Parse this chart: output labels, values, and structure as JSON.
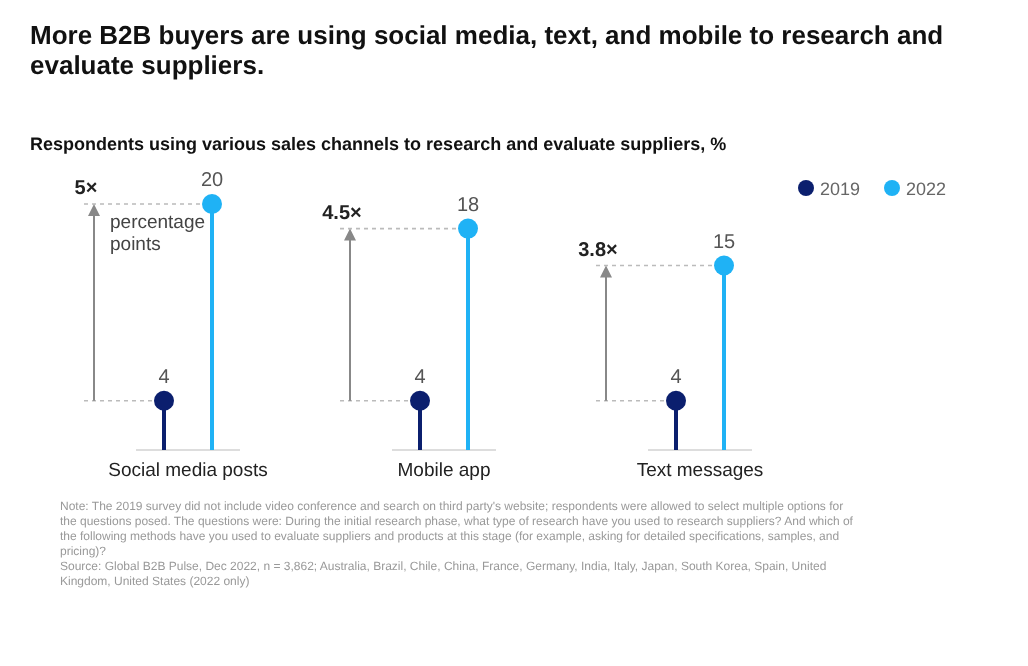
{
  "chart_data": {
    "type": "lollipop",
    "title": "More B2B buyers are using social media, text, and mobile to research and evaluate suppliers.",
    "subtitle": "Respondents using various sales channels to research and evaluate suppliers, %",
    "categories": [
      "Social media posts",
      "Mobile app",
      "Text messages"
    ],
    "series": [
      {
        "name": "2019",
        "color": "#0b1f6e",
        "values": [
          4,
          4,
          4
        ]
      },
      {
        "name": "2022",
        "color": "#1fb2f5",
        "values": [
          20,
          18,
          15
        ]
      }
    ],
    "data_labels": true,
    "legend": "top right",
    "annotations": [
      "5×",
      "4.5×",
      "3.8×",
      "percentage points",
      "Note: The 2019 survey did not include video conference and search on third party's website; respondents were allowed to select multiple options for the questions posed. The questions were: During the initial research phase, what type of research have you used to research suppliers? And which of the following methods have you used to evaluate suppliers and products at this stage (for example, asking for detailed specifications, samples, and pricing)?",
      "Source: Global B2B Pulse, Dec 2022, n = 3,862; Australia, Brazil, Chile, China, France, Germany, India, Italy, Japan, South Korea, Spain, United Kingdom, United States (2022 only)"
    ]
  }
}
